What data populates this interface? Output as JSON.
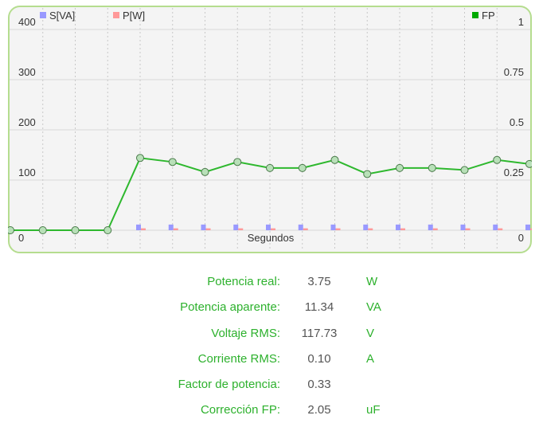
{
  "chart_data": {
    "type": "line",
    "title": "",
    "xlabel": "Segundos",
    "ylabel": "",
    "legend": [
      {
        "name": "S[VA]",
        "color": "#9999ff"
      },
      {
        "name": "P[W]",
        "color": "#ff9999"
      },
      {
        "name": "FP",
        "color": "#00aa00"
      }
    ],
    "legend_placement": "top",
    "y_left": {
      "min": 0,
      "max": 400,
      "ticks": [
        "0",
        "100",
        "200",
        "300",
        "400"
      ]
    },
    "y_right": {
      "min": 0,
      "max": 1,
      "ticks": [
        "0",
        "0.25",
        "0.5",
        "0.75",
        "1"
      ]
    },
    "grid": true,
    "x": [
      0,
      1,
      2,
      3,
      4,
      5,
      6,
      7,
      8,
      9,
      10,
      11,
      12,
      13,
      14,
      15,
      16
    ],
    "series": [
      {
        "name": "FP",
        "axis": "right",
        "color": "#2eb82e",
        "values": [
          0,
          0,
          0,
          0,
          0.36,
          0.34,
          0.29,
          0.34,
          0.31,
          0.31,
          0.35,
          0.28,
          0.31,
          0.31,
          0.3,
          0.35,
          0.33
        ]
      },
      {
        "name": "S[VA]",
        "axis": "left",
        "color": "#9999ff",
        "values": [
          null,
          null,
          null,
          null,
          11.3,
          11.3,
          11.3,
          11.3,
          11.3,
          11.3,
          11.3,
          11.3,
          11.3,
          11.3,
          11.3,
          11.3,
          11.3
        ]
      },
      {
        "name": "P[W]",
        "axis": "left",
        "color": "#ff9999",
        "values": [
          null,
          null,
          null,
          null,
          3.8,
          3.8,
          3.8,
          3.8,
          3.8,
          3.8,
          3.8,
          3.8,
          3.8,
          3.8,
          3.8,
          3.8,
          3.8
        ]
      }
    ]
  },
  "stats": [
    {
      "label": "Potencia real:",
      "value": "3.75",
      "unit": "W"
    },
    {
      "label": "Potencia aparente:",
      "value": "11.34",
      "unit": "VA"
    },
    {
      "label": "Voltaje RMS:",
      "value": "117.73",
      "unit": "V"
    },
    {
      "label": "Corriente RMS:",
      "value": "0.10",
      "unit": "A"
    },
    {
      "label": "Factor de potencia:",
      "value": "0.33",
      "unit": ""
    },
    {
      "label": "Corrección FP:",
      "value": "2.05",
      "unit": "uF"
    }
  ]
}
